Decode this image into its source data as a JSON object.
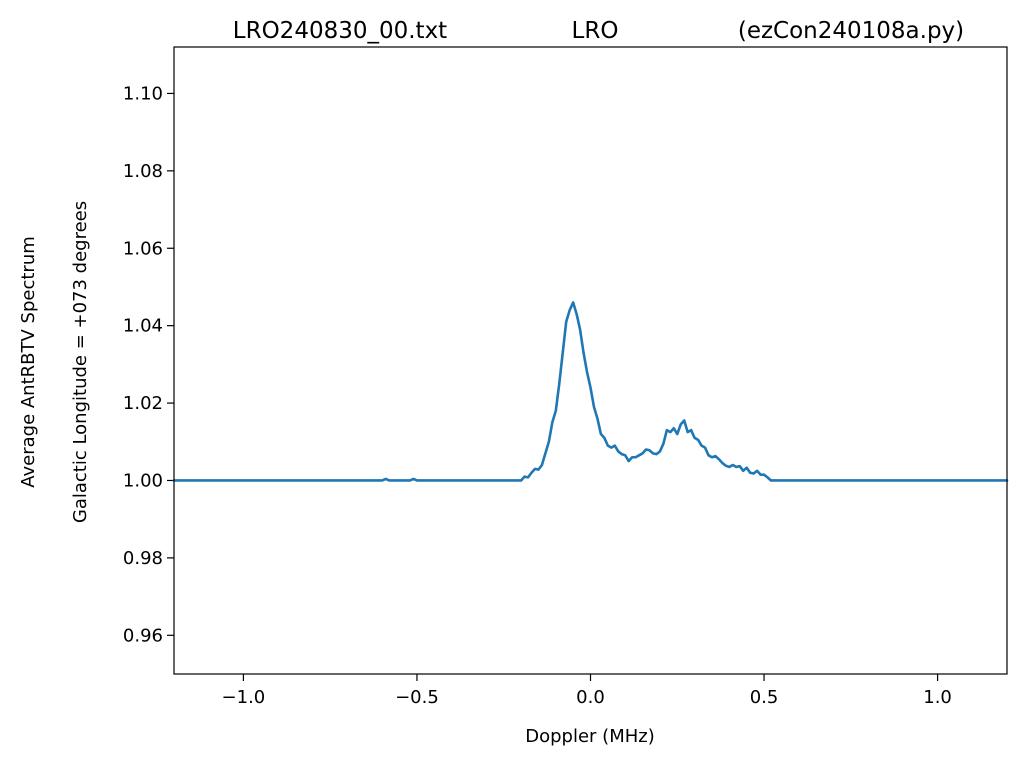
{
  "chart_data": {
    "type": "line",
    "title_left": "LRO240830_00.txt",
    "title_center": "LRO",
    "title_right": "(ezCon240108a.py)",
    "xlabel": "Doppler (MHz)",
    "ylabel_line1": "Average AntRBTV Spectrum",
    "ylabel_line2": "Galactic Longitude = +073 degrees",
    "xlim": [
      -1.2,
      1.2
    ],
    "ylim": [
      0.95,
      1.112
    ],
    "x_ticks": [
      -1.0,
      -0.5,
      0.0,
      0.5,
      1.0
    ],
    "x_tick_labels": [
      "−1.0",
      "−0.5",
      "0.0",
      "0.5",
      "1.0"
    ],
    "y_ticks": [
      0.96,
      0.98,
      1.0,
      1.02,
      1.04,
      1.06,
      1.08,
      1.1
    ],
    "y_tick_labels": [
      "0.96",
      "0.98",
      "1.00",
      "1.02",
      "1.04",
      "1.06",
      "1.08",
      "1.10"
    ],
    "grid": false,
    "line_color": "#1f77b4",
    "series": [
      {
        "x": [
          -1.2,
          -0.6,
          -0.59,
          -0.58,
          -0.52,
          -0.51,
          -0.5,
          -0.2,
          -0.19,
          -0.18,
          -0.17,
          -0.16,
          -0.15,
          -0.14,
          -0.13,
          -0.12,
          -0.11,
          -0.1,
          -0.09,
          -0.08,
          -0.07,
          -0.06,
          -0.05,
          -0.04,
          -0.03,
          -0.02,
          -0.01,
          0.0,
          0.01,
          0.02,
          0.03,
          0.04,
          0.05,
          0.06,
          0.07,
          0.08,
          0.09,
          0.1,
          0.11,
          0.12,
          0.13,
          0.14,
          0.15,
          0.16,
          0.17,
          0.18,
          0.19,
          0.2,
          0.21,
          0.22,
          0.23,
          0.24,
          0.25,
          0.26,
          0.27,
          0.28,
          0.29,
          0.3,
          0.31,
          0.32,
          0.33,
          0.34,
          0.35,
          0.36,
          0.37,
          0.38,
          0.39,
          0.4,
          0.41,
          0.42,
          0.43,
          0.44,
          0.45,
          0.46,
          0.47,
          0.48,
          0.49,
          0.5,
          0.51,
          0.52,
          0.53,
          0.54,
          0.55,
          0.56,
          0.57,
          0.58,
          0.59,
          0.6,
          0.61,
          1.2
        ],
        "values": [
          1.0,
          1.0,
          1.0004,
          1.0,
          1.0,
          1.0004,
          1.0,
          1.0,
          1.001,
          1.0008,
          1.002,
          1.003,
          1.0028,
          1.004,
          1.007,
          1.01,
          1.015,
          1.018,
          1.025,
          1.033,
          1.041,
          1.044,
          1.046,
          1.043,
          1.039,
          1.033,
          1.028,
          1.024,
          1.019,
          1.016,
          1.012,
          1.011,
          1.009,
          1.0085,
          1.009,
          1.0075,
          1.0068,
          1.0065,
          1.005,
          1.006,
          1.006,
          1.0065,
          1.007,
          1.008,
          1.0078,
          1.007,
          1.0068,
          1.0075,
          1.0095,
          1.013,
          1.0125,
          1.0135,
          1.012,
          1.0145,
          1.0155,
          1.0125,
          1.013,
          1.011,
          1.0105,
          1.009,
          1.0085,
          1.0065,
          1.006,
          1.0063,
          1.0055,
          1.0045,
          1.0038,
          1.0035,
          1.004,
          1.0035,
          1.0037,
          1.0025,
          1.0033,
          1.002,
          1.0018,
          1.0025,
          1.0015,
          1.0015,
          1.0008,
          1.0,
          1.0,
          1.0,
          1.0,
          1.0,
          1.0,
          1.0,
          1.0,
          1.0,
          1.0,
          1.0
        ]
      }
    ]
  }
}
